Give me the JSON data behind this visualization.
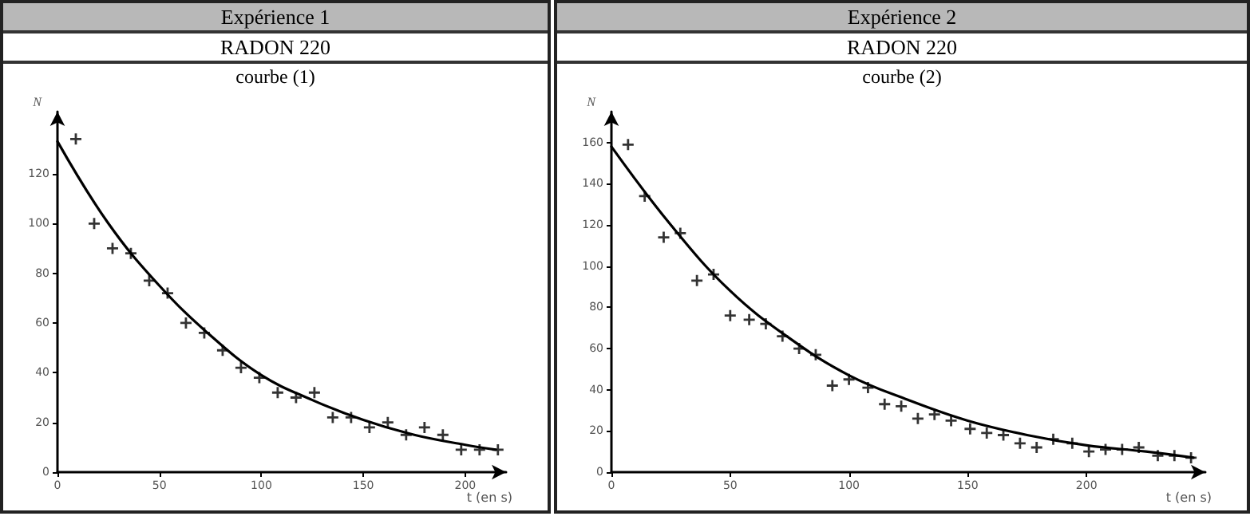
{
  "chart_data": [
    {
      "type": "scatter",
      "title": "Expérience 1",
      "subtitle": "RADON 220",
      "annotations": [
        "courbe (1)"
      ],
      "xlabel": "t (en s)",
      "ylabel": "N",
      "xlim": [
        0,
        220
      ],
      "xticks": [
        0,
        50,
        100,
        150,
        200
      ],
      "ylim": [
        0,
        145
      ],
      "yticks": [
        0,
        20,
        40,
        60,
        80,
        100,
        120
      ],
      "series": [
        {
          "color": "#000000",
          "marker": "cross",
          "x": [
            9,
            18,
            27,
            36,
            45,
            54,
            63,
            72,
            81,
            90,
            99,
            108,
            117,
            126,
            135,
            144,
            153,
            162,
            171,
            180,
            189,
            198,
            207,
            216
          ],
          "values": [
            134,
            100,
            90,
            88,
            77,
            72,
            60,
            56,
            49,
            42,
            38,
            32,
            30,
            32,
            22,
            22,
            18,
            20,
            15,
            18,
            15,
            9,
            9,
            9
          ]
        },
        {
          "type": "line",
          "color": "#000000",
          "marker": "none",
          "x": [
            0,
            25,
            50,
            75,
            100,
            125,
            150,
            175,
            200,
            215
          ],
          "values": [
            133,
            100,
            75,
            55,
            39,
            29,
            21,
            15,
            11,
            9
          ]
        }
      ]
    },
    {
      "type": "scatter",
      "title": "Expérience 2",
      "subtitle": "RADON 220",
      "annotations": [
        "courbe (2)"
      ],
      "xlabel": "t (en s)",
      "ylabel": "N",
      "xlim": [
        0,
        250
      ],
      "xticks": [
        0,
        50,
        100,
        150,
        200
      ],
      "ylim": [
        0,
        175
      ],
      "yticks": [
        0,
        20,
        40,
        60,
        80,
        100,
        120,
        140,
        160
      ],
      "series": [
        {
          "color": "#000000",
          "marker": "cross",
          "x": [
            7,
            14,
            22,
            29,
            36,
            43,
            50,
            58,
            65,
            72,
            79,
            86,
            93,
            100,
            108,
            115,
            122,
            129,
            136,
            143,
            151,
            158,
            165,
            172,
            179,
            186,
            194,
            201,
            208,
            215,
            222,
            230,
            237,
            244
          ],
          "values": [
            159,
            134,
            114,
            116,
            93,
            96,
            76,
            74,
            72,
            66,
            60,
            57,
            42,
            45,
            41,
            33,
            32,
            26,
            28,
            25,
            21,
            19,
            18,
            14,
            12,
            16,
            14,
            10,
            11,
            11,
            12,
            8,
            8,
            7
          ]
        },
        {
          "type": "line",
          "color": "#000000",
          "marker": "none",
          "x": [
            0,
            25,
            50,
            75,
            100,
            125,
            150,
            175,
            200,
            225,
            245
          ],
          "values": [
            158,
            120,
            88,
            65,
            47,
            35,
            25,
            18,
            13,
            10,
            7
          ]
        }
      ]
    }
  ]
}
